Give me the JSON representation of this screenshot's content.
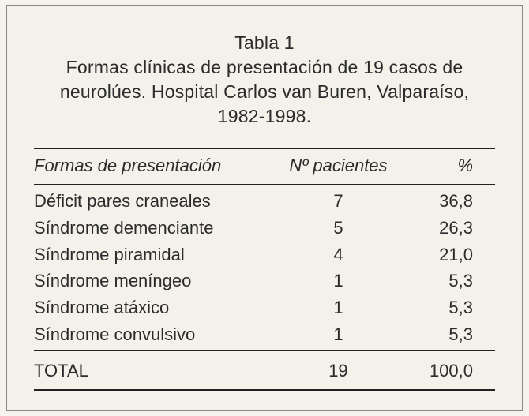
{
  "title_label": "Tabla 1",
  "caption_line1": "Formas clínicas de presentación de 19 casos de",
  "caption_line2": "neurolúes. Hospital Carlos van Buren, Valparaíso,",
  "caption_line3": "1982-1998.",
  "table": {
    "type": "table",
    "columns": [
      {
        "key": "forma",
        "label": "Formas  de presentación",
        "align": "left",
        "width_pct": 55
      },
      {
        "key": "n",
        "label": "Nº  pacientes",
        "align": "center",
        "width_pct": 22
      },
      {
        "key": "pct",
        "label": "%",
        "align": "right",
        "width_pct": 23
      }
    ],
    "rows": [
      {
        "forma": "Déficit  pares  craneales",
        "n": "7",
        "pct": "36,8"
      },
      {
        "forma": "Síndrome  demenciante",
        "n": "5",
        "pct": "26,3"
      },
      {
        "forma": "Síndrome  piramidal",
        "n": "4",
        "pct": "21,0"
      },
      {
        "forma": "Síndrome  meníngeo",
        "n": "1",
        "pct": "5,3"
      },
      {
        "forma": "Síndrome  atáxico",
        "n": "1",
        "pct": "5,3"
      },
      {
        "forma": "Síndrome  convulsivo",
        "n": "1",
        "pct": "5,3"
      }
    ],
    "total": {
      "label": "TOTAL",
      "n": "19",
      "pct": "100,0"
    },
    "font_size_pt": 17,
    "header_font_style": "italic",
    "rule_color": "#222222",
    "text_color": "#2b2b2b",
    "background_color": "#f3f1e9"
  }
}
